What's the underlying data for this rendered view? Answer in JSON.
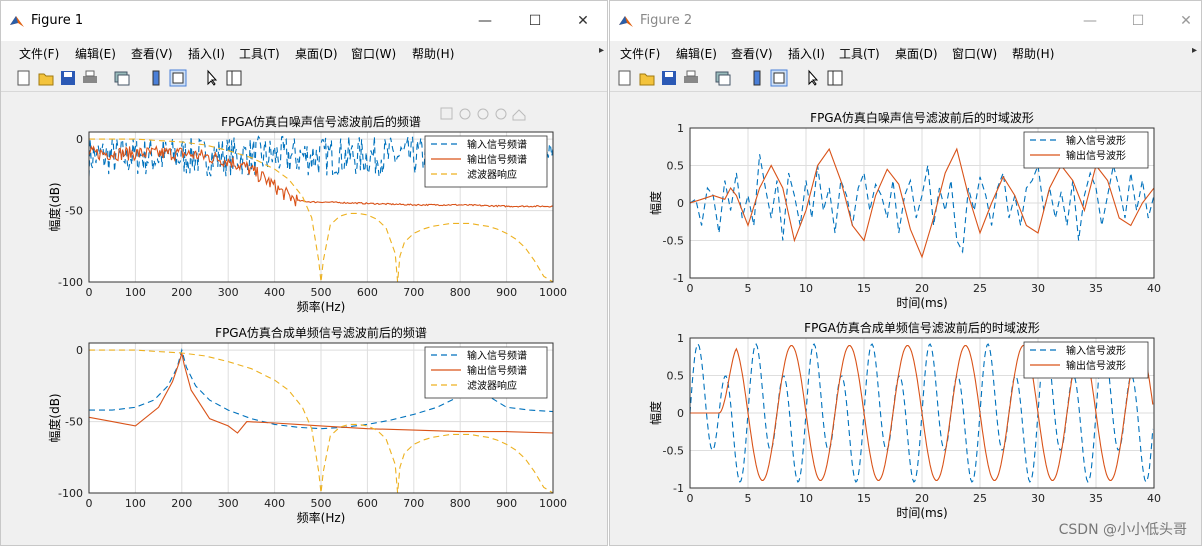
{
  "figure1": {
    "title": "Figure 1",
    "menus": [
      "文件(F)",
      "编辑(E)",
      "查看(V)",
      "插入(I)",
      "工具(T)",
      "桌面(D)",
      "窗口(W)",
      "帮助(H)"
    ],
    "plot_tools": [
      "brush-icon",
      "datatip-icon",
      "pan-icon",
      "zoom-in-icon",
      "zoom-out-icon",
      "home-icon"
    ]
  },
  "figure2": {
    "title": "Figure 2",
    "menus": [
      "文件(F)",
      "编辑(E)",
      "查看(V)",
      "插入(I)",
      "工具(T)",
      "桌面(D)",
      "窗口(W)",
      "帮助(H)"
    ]
  },
  "window_controls": {
    "minimize": "—",
    "maximize": "☐",
    "close": "✕"
  },
  "toolbar_icons": [
    "new-figure-icon",
    "open-file-icon",
    "save-icon",
    "print-icon",
    "link-icon",
    "colorbar-icon",
    "legend-icon",
    "pointer-icon",
    "property-inspector-icon"
  ],
  "colors": {
    "input": "#0072BD",
    "output": "#D95319",
    "filter": "#EDB120",
    "grid": "#dedede"
  },
  "watermark": "CSDN @小小低头哥",
  "chart_data": [
    {
      "type": "line",
      "title": "FPGA仿真白噪声信号滤波前后的频谱",
      "xlabel": "频率(Hz)",
      "ylabel": "幅度(dB)",
      "xlim": [
        0,
        1000
      ],
      "ylim": [
        -100,
        5
      ],
      "xticks": [
        "0",
        "100",
        "200",
        "300",
        "400",
        "500",
        "600",
        "700",
        "800",
        "900",
        "1000"
      ],
      "yticks": [
        "0",
        "-50",
        "-100"
      ],
      "grid": true,
      "legend_position": "top-right",
      "series": [
        {
          "name": "输入信号频谱",
          "style": "dashed",
          "color": "#0072BD",
          "values_desc": "noise",
          "mean": -12,
          "spread": 14
        },
        {
          "name": "输出信号频谱",
          "style": "solid",
          "color": "#D95319",
          "x": [
            0,
            100,
            200,
            250,
            300,
            340,
            380,
            420,
            450,
            480,
            500,
            600,
            700,
            800,
            900,
            1000
          ],
          "y": [
            -10,
            -10,
            -10,
            -12,
            -15,
            -20,
            -28,
            -38,
            -43,
            -44,
            -44,
            -45,
            -46,
            -46,
            -47,
            -47
          ]
        },
        {
          "name": "滤波器响应",
          "style": "dashed",
          "color": "#EDB120",
          "x": [
            0,
            50,
            100,
            150,
            200,
            250,
            300,
            350,
            400,
            430,
            460,
            480,
            495,
            500,
            505,
            520,
            540,
            560,
            580,
            600,
            620,
            640,
            660,
            665,
            670,
            680,
            700,
            720,
            740,
            760,
            780,
            800,
            820,
            840,
            860,
            880,
            900,
            920,
            940,
            960,
            980,
            1000
          ],
          "y": [
            0,
            0,
            0,
            -1,
            -2,
            -4,
            -8,
            -13,
            -21,
            -28,
            -40,
            -55,
            -85,
            -100,
            -85,
            -60,
            -54,
            -52,
            -52,
            -53,
            -56,
            -62,
            -80,
            -100,
            -82,
            -72,
            -66,
            -63,
            -61,
            -60,
            -59,
            -59,
            -59,
            -60,
            -61,
            -63,
            -66,
            -70,
            -76,
            -85,
            -96,
            -100
          ]
        }
      ]
    },
    {
      "type": "line",
      "title": "FPGA仿真合成单频信号滤波前后的频谱",
      "xlabel": "频率(Hz)",
      "ylabel": "幅度(dB)",
      "xlim": [
        0,
        1000
      ],
      "ylim": [
        -100,
        5
      ],
      "xticks": [
        "0",
        "100",
        "200",
        "300",
        "400",
        "500",
        "600",
        "700",
        "800",
        "900",
        "1000"
      ],
      "yticks": [
        "0",
        "-50",
        "-100"
      ],
      "grid": true,
      "legend_position": "top-right",
      "series": [
        {
          "name": "输入信号频谱",
          "style": "dashed",
          "color": "#0072BD",
          "x": [
            0,
            50,
            100,
            140,
            170,
            190,
            200,
            210,
            230,
            260,
            300,
            350,
            400,
            450,
            500,
            550,
            600,
            650,
            700,
            750,
            800,
            830,
            860,
            900,
            950,
            1000
          ],
          "y": [
            -42,
            -42,
            -40,
            -35,
            -25,
            -12,
            0,
            -12,
            -25,
            -35,
            -42,
            -48,
            -52,
            -54,
            -55,
            -54,
            -52,
            -49,
            -45,
            -40,
            -32,
            -27,
            -32,
            -40,
            -42,
            -43
          ]
        },
        {
          "name": "输出信号频谱",
          "style": "solid",
          "color": "#D95319",
          "x": [
            0,
            50,
            100,
            150,
            180,
            195,
            200,
            205,
            220,
            260,
            300,
            320,
            340,
            400,
            450,
            500,
            600,
            700,
            800,
            900,
            1000
          ],
          "y": [
            -47,
            -50,
            -53,
            -40,
            -22,
            -8,
            -2,
            -10,
            -28,
            -48,
            -53,
            -58,
            -50,
            -51,
            -52,
            -53,
            -55,
            -56,
            -57,
            -57,
            -58
          ]
        },
        {
          "name": "滤波器响应",
          "style": "dashed",
          "color": "#EDB120",
          "x": [
            0,
            50,
            100,
            150,
            200,
            250,
            300,
            350,
            400,
            430,
            460,
            480,
            495,
            500,
            505,
            520,
            540,
            560,
            580,
            600,
            620,
            640,
            660,
            665,
            670,
            680,
            700,
            720,
            740,
            760,
            780,
            800,
            820,
            840,
            860,
            880,
            900,
            920,
            940,
            960,
            980,
            1000
          ],
          "y": [
            0,
            0,
            0,
            -1,
            -2,
            -4,
            -8,
            -13,
            -21,
            -28,
            -40,
            -55,
            -85,
            -100,
            -85,
            -60,
            -54,
            -52,
            -52,
            -53,
            -56,
            -62,
            -80,
            -100,
            -82,
            -72,
            -66,
            -63,
            -61,
            -60,
            -59,
            -59,
            -59,
            -60,
            -61,
            -63,
            -66,
            -70,
            -76,
            -85,
            -96,
            -100
          ]
        }
      ]
    },
    {
      "type": "line",
      "title": "FPGA仿真白噪声信号滤波前后的时域波形",
      "xlabel": "时间(ms)",
      "ylabel": "幅度",
      "xlim": [
        0,
        40
      ],
      "ylim": [
        -1,
        1
      ],
      "xticks": [
        "0",
        "5",
        "10",
        "15",
        "20",
        "25",
        "30",
        "35",
        "40"
      ],
      "yticks": [
        "1",
        "0.5",
        "0",
        "-0.5",
        "-1"
      ],
      "grid": true,
      "legend_position": "top-right",
      "series": [
        {
          "name": "输入信号波形",
          "style": "dashed",
          "color": "#0072BD",
          "x": [
            0,
            0.5,
            1,
            1.5,
            2,
            2.5,
            3,
            3.5,
            4,
            4.5,
            5,
            5.5,
            6,
            6.5,
            7,
            7.5,
            8,
            8.5,
            9,
            9.5,
            10,
            10.5,
            11,
            11.5,
            12,
            12.5,
            13,
            13.5,
            14,
            14.5,
            15,
            15.5,
            16,
            16.5,
            17,
            17.5,
            18,
            18.5,
            19,
            19.5,
            20,
            20.5,
            21,
            21.5,
            22,
            22.5,
            23,
            23.5,
            24,
            24.5,
            25,
            25.5,
            26,
            26.5,
            27,
            27.5,
            28,
            28.5,
            29,
            29.5,
            30,
            30.5,
            31,
            31.5,
            32,
            32.5,
            33,
            33.5,
            34,
            34.5,
            35,
            35.5,
            36,
            36.5,
            37,
            37.5,
            38,
            38.5,
            39,
            39.5,
            40
          ],
          "y": [
            0,
            0.05,
            -0.3,
            0.2,
            0.1,
            -0.4,
            0.3,
            -0.1,
            0.4,
            -0.2,
            0.1,
            -0.3,
            0.65,
            0.2,
            -0.2,
            0.3,
            -0.5,
            0.4,
            0.1,
            -0.3,
            0.3,
            -0.2,
            0.5,
            -0.1,
            0.2,
            -0.4,
            0.3,
            0.1,
            -0.3,
            0.2,
            0.4,
            -0.1,
            0.25,
            0.1,
            -0.2,
            0.3,
            -0.4,
            0.1,
            0.3,
            -0.2,
            0.1,
            0.5,
            -0.3,
            0.2,
            -0.1,
            0.3,
            -0.5,
            -0.65,
            0.2,
            -0.1,
            0.35,
            0.1,
            -0.3,
            0.2,
            0.4,
            -0.2,
            0.1,
            -0.3,
            0.2,
            0.3,
            0.5,
            -0.1,
            0.2,
            -0.2,
            0.15,
            -0.3,
            0.3,
            -0.5,
            0.1,
            0.4,
            0.2,
            -0.3,
            0.1,
            0.5,
            0.2,
            -0.2,
            0.4,
            -0.1,
            0.3,
            -0.2,
            0.1
          ]
        },
        {
          "name": "输出信号波形",
          "style": "solid",
          "color": "#D95319",
          "x": [
            0,
            1,
            2,
            3,
            3.5,
            4,
            5,
            6,
            7,
            8,
            9,
            10,
            11,
            12,
            13,
            14,
            15,
            16,
            17,
            18,
            19,
            20,
            21,
            22,
            23,
            24,
            25,
            26,
            27,
            28,
            29,
            30,
            31,
            32,
            33,
            34,
            35,
            36,
            37,
            38,
            39,
            40
          ],
          "y": [
            0,
            0.05,
            0.1,
            0.05,
            0.2,
            0.1,
            -0.3,
            0.2,
            0.5,
            0.2,
            -0.5,
            -0.1,
            0.5,
            0.72,
            0.3,
            -0.3,
            -0.5,
            0.1,
            0.45,
            0.25,
            -0.35,
            -0.72,
            -0.2,
            0.4,
            0.72,
            0.1,
            -0.4,
            0,
            0.35,
            0.1,
            -0.3,
            -0.4,
            0.2,
            0.5,
            0.3,
            -0.1,
            0.5,
            0.3,
            -0.2,
            -0.3,
            0,
            0.2
          ]
        }
      ]
    },
    {
      "type": "line",
      "title": "FPGA仿真合成单频信号滤波前后的时域波形",
      "xlabel": "时间(ms)",
      "ylabel": "幅度",
      "xlim": [
        0,
        40
      ],
      "ylim": [
        -1,
        1
      ],
      "xticks": [
        "0",
        "5",
        "10",
        "15",
        "20",
        "25",
        "30",
        "35",
        "40"
      ],
      "yticks": [
        "1",
        "0.5",
        "0",
        "-0.5",
        "-1"
      ],
      "grid": true,
      "legend_position": "top-right",
      "series": [
        {
          "name": "输入信号波形",
          "style": "dashed",
          "color": "#0072BD",
          "period_ms": 2.5,
          "amplitude": 1,
          "desc": "two-tone sine"
        },
        {
          "name": "输出信号波形",
          "style": "solid",
          "color": "#D95319",
          "period_ms": 5,
          "amplitude": 0.9,
          "onset_ms": 2.5
        }
      ]
    }
  ]
}
